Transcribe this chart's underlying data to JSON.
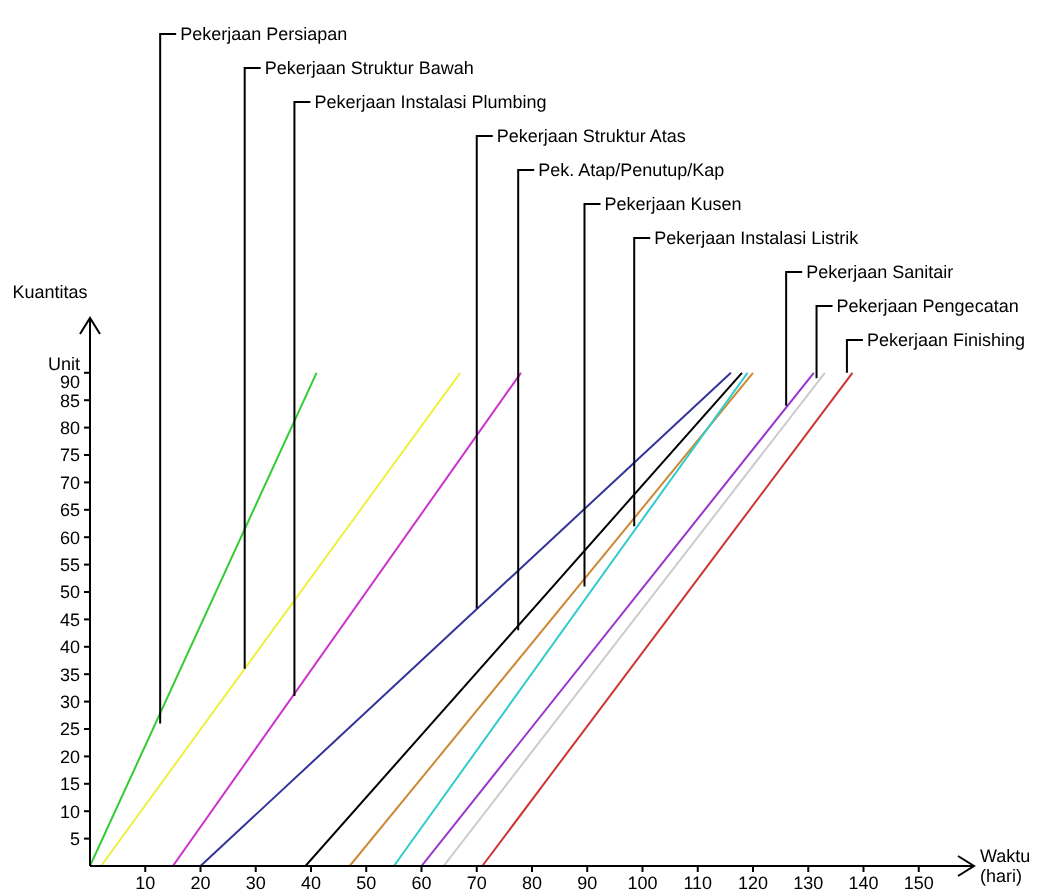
{
  "chart_data": {
    "type": "line",
    "xlabel": "Waktu (hari)",
    "ylabel": "Kuantitas",
    "xlim": [
      0,
      160
    ],
    "ylim": [
      0,
      100
    ],
    "xticks": [
      10,
      20,
      30,
      40,
      50,
      60,
      70,
      80,
      90,
      100,
      110,
      120,
      130,
      140,
      150
    ],
    "yticks": [
      5,
      10,
      15,
      20,
      25,
      30,
      35,
      40,
      45,
      50,
      55,
      60,
      65,
      70,
      75,
      80,
      85,
      {
        "value": 90,
        "label": "Unit 90"
      }
    ],
    "grid": false,
    "legend": false,
    "marker": "none",
    "line_style": "solid",
    "series": [
      {
        "color": "#33cc33",
        "x": [
          0,
          41
        ],
        "values": [
          0,
          90
        ]
      },
      {
        "color": "#f0f040",
        "x": [
          2,
          67
        ],
        "values": [
          0,
          90
        ]
      },
      {
        "color": "#cc33cc",
        "x": [
          15,
          78
        ],
        "values": [
          0,
          90
        ]
      },
      {
        "color": "#333399",
        "x": [
          20,
          116
        ],
        "values": [
          0,
          90
        ]
      },
      {
        "color": "#000000",
        "x": [
          39,
          118
        ],
        "values": [
          0,
          90
        ]
      },
      {
        "color": "#cc8833",
        "x": [
          47,
          120
        ],
        "values": [
          0,
          90
        ]
      },
      {
        "color": "#33cccc",
        "x": [
          55,
          119
        ],
        "values": [
          0,
          90
        ]
      },
      {
        "color": "#9933cc",
        "x": [
          60,
          131
        ],
        "values": [
          0,
          90
        ]
      },
      {
        "color": "#cccccc",
        "x": [
          64,
          133
        ],
        "values": [
          0,
          90
        ]
      },
      {
        "color": "#cc3333",
        "x": [
          71,
          138
        ],
        "values": [
          0,
          90
        ]
      }
    ],
    "annotations": [
      {
        "text": "Pekerjaan Persiapan",
        "x": 12.7,
        "y": 26
      },
      {
        "text": "Pekerjaan Struktur Bawah",
        "x": 28,
        "y": 36
      },
      {
        "text": "Pekerjaan Instalasi Plumbing",
        "x": 37,
        "y": 31
      },
      {
        "text": "Pekerjaan Struktur Atas",
        "x": 70,
        "y": 47
      },
      {
        "text": "Pek. Atap/Penutup/Kap",
        "x": 77.5,
        "y": 43
      },
      {
        "text": "Pekerjaan Kusen",
        "x": 89.5,
        "y": 51
      },
      {
        "text": "Pekerjaan Instalasi Listrik",
        "x": 98.5,
        "y": 62
      },
      {
        "text": "Pekerjaan Sanitair",
        "x": 126,
        "y": 84
      },
      {
        "text": "Pekerjaan Pengecatan",
        "x": 131.5,
        "y": 89
      },
      {
        "text": "Pekerjaan Finishing",
        "x": 137,
        "y": 90
      }
    ]
  }
}
